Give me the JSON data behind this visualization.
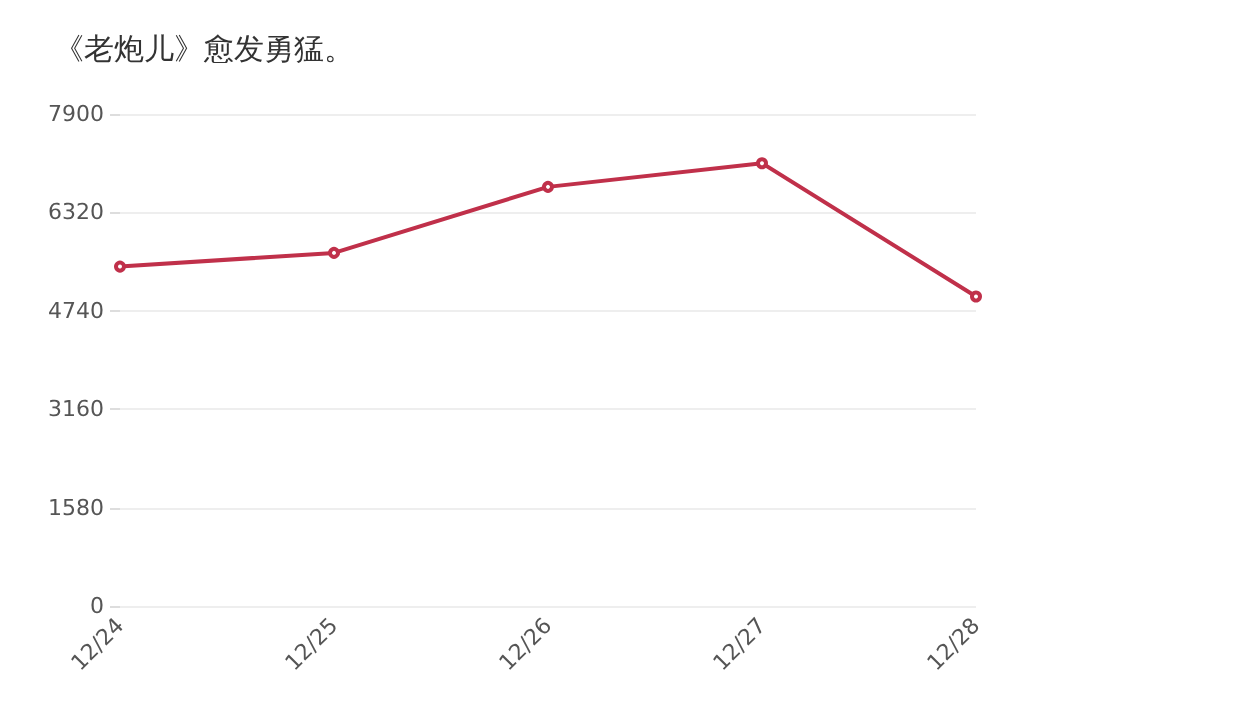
{
  "chart_data": {
    "type": "line",
    "title": "《老炮儿》愈发勇猛。",
    "categories": [
      "12/24",
      "12/25",
      "12/26",
      "12/27",
      "12/28"
    ],
    "series": [
      {
        "color": "#c0304a",
        "values": [
          5450,
          5670,
          6730,
          7110,
          4970
        ]
      }
    ],
    "ylim": [
      0,
      7900
    ],
    "yticks": [
      0,
      1580,
      3160,
      4740,
      6320,
      7900
    ],
    "grid": "y",
    "marker": "circle",
    "line_style": "solid"
  }
}
